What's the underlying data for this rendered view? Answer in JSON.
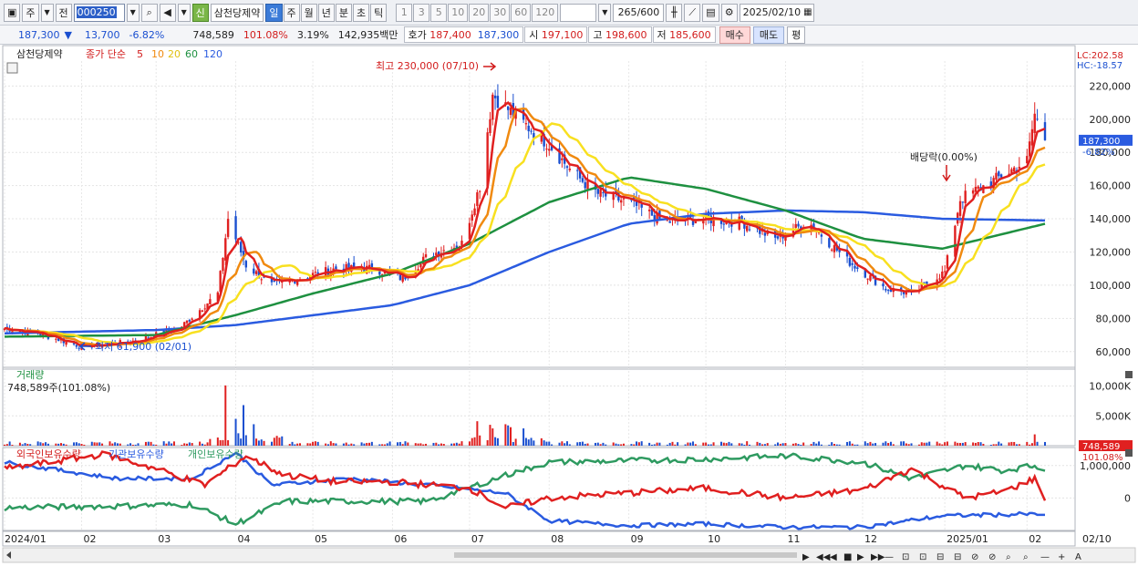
{
  "toolbar": {
    "market": "주",
    "prev_label": "전",
    "code": "000250",
    "stock_badge": "신",
    "stock_name": "삼천당제약",
    "periods": [
      "일",
      "주",
      "월",
      "년",
      "분",
      "초",
      "틱"
    ],
    "active_period": "일",
    "intervals": [
      "1",
      "3",
      "5",
      "10",
      "20",
      "30",
      "60",
      "120"
    ],
    "count_current": "265",
    "count_total": "/600",
    "date": "2025/02/10"
  },
  "quote": {
    "price": "187,300",
    "change": "13,700",
    "change_pct": "-6.82%",
    "volume": "748,589",
    "volume_ratio": "101.08%",
    "turnover": "3.19%",
    "amount": "142,935백만",
    "ask_label": "호가",
    "ask_value": "187,400",
    "bid_value": "187,300",
    "open_label": "시",
    "open_value": "197,100",
    "high_label": "고",
    "high_value": "198,600",
    "low_label": "저",
    "low_value": "185,600",
    "buy_label": "매수",
    "sell_label": "매도",
    "avg_label": "평"
  },
  "colors": {
    "up": "#e02020",
    "down": "#1a4fd0",
    "ma5": "#e02020",
    "ma10": "#f08a10",
    "ma20": "#f8e020",
    "ma60": "#1e9040",
    "ma120": "#2a5be0",
    "foreign": "#e02020",
    "institution": "#2a5be0",
    "individual": "#2e9a60"
  },
  "chart_data": [
    {
      "type": "candlestick",
      "title": "삼천당제약",
      "legend_prefix": "종가 단순",
      "ma_periods": [
        "5",
        "10",
        "20",
        "60",
        "120"
      ],
      "y_ticks": [
        "220,000",
        "200,000",
        "180,000",
        "160,000",
        "140,000",
        "120,000",
        "100,000",
        "80,000",
        "60,000"
      ],
      "ylim": [
        50000,
        235000
      ],
      "lc_label": "LC:202.58",
      "hc_label": "HC:-18.57",
      "current_price_label": "187,300",
      "current_pct_label": "-6.82%",
      "annotations": {
        "high": "최고 230,000 (07/10)",
        "low": "최저 61,900 (02/01)",
        "dividend": "배당락(0.00%)"
      },
      "x_ticks": [
        "2024/01",
        "02",
        "03",
        "04",
        "05",
        "06",
        "07",
        "08",
        "09",
        "10",
        "11",
        "12",
        "2025/01",
        "02",
        "02/10"
      ],
      "close_anchors": [
        [
          "2024-01-02",
          74000
        ],
        [
          "2024-01-15",
          71000
        ],
        [
          "2024-02-01",
          63000
        ],
        [
          "2024-02-20",
          66000
        ],
        [
          "2024-03-10",
          74000
        ],
        [
          "2024-03-25",
          95000
        ],
        [
          "2024-03-29",
          140000
        ],
        [
          "2024-04-05",
          112000
        ],
        [
          "2024-04-15",
          100000
        ],
        [
          "2024-04-25",
          104000
        ],
        [
          "2024-05-10",
          110000
        ],
        [
          "2024-05-25",
          110000
        ],
        [
          "2024-06-05",
          104000
        ],
        [
          "2024-06-15",
          118000
        ],
        [
          "2024-06-28",
          125000
        ],
        [
          "2024-07-05",
          160000
        ],
        [
          "2024-07-10",
          215000
        ],
        [
          "2024-07-20",
          200000
        ],
        [
          "2024-08-01",
          185000
        ],
        [
          "2024-08-10",
          168000
        ],
        [
          "2024-08-20",
          155000
        ],
        [
          "2024-09-01",
          150000
        ],
        [
          "2024-09-15",
          138000
        ],
        [
          "2024-10-01",
          140000
        ],
        [
          "2024-10-15",
          138000
        ],
        [
          "2024-10-28",
          128000
        ],
        [
          "2024-11-10",
          138000
        ],
        [
          "2024-11-25",
          115000
        ],
        [
          "2024-12-10",
          98000
        ],
        [
          "2024-12-20",
          95000
        ],
        [
          "2025-01-02",
          108000
        ],
        [
          "2025-01-08",
          152000
        ],
        [
          "2025-01-20",
          162000
        ],
        [
          "2025-02-03",
          175000
        ],
        [
          "2025-02-06",
          203000
        ],
        [
          "2025-02-10",
          187300
        ]
      ],
      "ma120_anchors": [
        [
          "2024-01-02",
          71000
        ],
        [
          "2024-03-01",
          73000
        ],
        [
          "2024-04-01",
          76000
        ],
        [
          "2024-06-01",
          88000
        ],
        [
          "2024-07-01",
          100000
        ],
        [
          "2024-08-01",
          120000
        ],
        [
          "2024-09-01",
          137000
        ],
        [
          "2024-10-01",
          143000
        ],
        [
          "2024-11-01",
          145000
        ],
        [
          "2024-12-01",
          144000
        ],
        [
          "2025-01-01",
          140000
        ],
        [
          "2025-02-10",
          139000
        ]
      ],
      "ma60_anchors": [
        [
          "2024-01-02",
          69000
        ],
        [
          "2024-03-01",
          70000
        ],
        [
          "2024-04-01",
          82000
        ],
        [
          "2024-05-01",
          95000
        ],
        [
          "2024-06-01",
          107000
        ],
        [
          "2024-07-01",
          125000
        ],
        [
          "2024-08-01",
          150000
        ],
        [
          "2024-09-01",
          165000
        ],
        [
          "2024-10-01",
          158000
        ],
        [
          "2024-11-01",
          145000
        ],
        [
          "2024-12-01",
          128000
        ],
        [
          "2025-01-01",
          122000
        ],
        [
          "2025-02-10",
          137000
        ]
      ]
    },
    {
      "type": "bar",
      "title": "거래량",
      "value_label": "748,589주(101.08%)",
      "y_ticks": [
        "10,000K",
        "5,000K"
      ],
      "ylim": [
        0,
        11000
      ],
      "unit": "K",
      "current_label": "748,589",
      "current_pct": "101.08%",
      "spikes": [
        [
          "2024-03-28",
          10100
        ],
        [
          "2024-04-01",
          4500
        ],
        [
          "2024-04-04",
          6800
        ],
        [
          "2024-04-08",
          3600
        ],
        [
          "2024-07-04",
          4100
        ],
        [
          "2024-07-09",
          3500
        ],
        [
          "2024-07-10",
          2900
        ],
        [
          "2024-07-15",
          3600
        ],
        [
          "2024-07-16",
          3400
        ],
        [
          "2024-07-17",
          3100
        ],
        [
          "2024-07-22",
          2900
        ],
        [
          "2025-02-06",
          1900
        ]
      ]
    },
    {
      "type": "line",
      "series_names": [
        "외국인보유수량",
        "기관보유수량",
        "개인보유수량"
      ],
      "y_ticks": [
        "1,000,000",
        "0"
      ],
      "ylim": [
        -1000000,
        1500000
      ],
      "foreign_anchors": [
        [
          "2024-01-02",
          900000
        ],
        [
          "2024-02-10",
          1350000
        ],
        [
          "2024-03-01",
          900000
        ],
        [
          "2024-03-20",
          400000
        ],
        [
          "2024-04-05",
          1300000
        ],
        [
          "2024-04-20",
          700000
        ],
        [
          "2024-05-10",
          500000
        ],
        [
          "2024-06-01",
          500000
        ],
        [
          "2024-07-01",
          300000
        ],
        [
          "2024-07-15",
          -300000
        ],
        [
          "2024-08-01",
          0
        ],
        [
          "2024-10-01",
          300000
        ],
        [
          "2024-11-01",
          0
        ],
        [
          "2024-12-01",
          250000
        ],
        [
          "2024-12-20",
          900000
        ],
        [
          "2025-01-10",
          0
        ],
        [
          "2025-01-25",
          200000
        ],
        [
          "2025-02-06",
          600000
        ],
        [
          "2025-02-10",
          0
        ]
      ],
      "institution_anchors": [
        [
          "2024-01-02",
          1100000
        ],
        [
          "2024-02-15",
          600000
        ],
        [
          "2024-03-15",
          600000
        ],
        [
          "2024-04-01",
          1400000
        ],
        [
          "2024-04-15",
          400000
        ],
        [
          "2024-05-15",
          600000
        ],
        [
          "2024-06-15",
          400000
        ],
        [
          "2024-07-15",
          150000
        ],
        [
          "2024-08-01",
          -700000
        ],
        [
          "2024-09-01",
          -850000
        ],
        [
          "2024-10-01",
          -800000
        ],
        [
          "2024-11-01",
          -900000
        ],
        [
          "2024-12-01",
          -900000
        ],
        [
          "2025-01-01",
          -550000
        ],
        [
          "2025-02-01",
          -500000
        ],
        [
          "2025-02-10",
          -500000
        ]
      ],
      "individual_anchors": [
        [
          "2024-01-02",
          -300000
        ],
        [
          "2024-02-15",
          -250000
        ],
        [
          "2024-03-15",
          -200000
        ],
        [
          "2024-04-01",
          -800000
        ],
        [
          "2024-04-20",
          -100000
        ],
        [
          "2024-05-15",
          -100000
        ],
        [
          "2024-06-15",
          -100000
        ],
        [
          "2024-07-15",
          700000
        ],
        [
          "2024-08-01",
          1100000
        ],
        [
          "2024-09-01",
          1150000
        ],
        [
          "2024-10-01",
          1200000
        ],
        [
          "2024-11-01",
          1300000
        ],
        [
          "2024-12-01",
          1100000
        ],
        [
          "2024-12-20",
          600000
        ],
        [
          "2025-01-10",
          1000000
        ],
        [
          "2025-01-25",
          850000
        ],
        [
          "2025-02-06",
          1000000
        ],
        [
          "2025-02-10",
          900000
        ]
      ]
    }
  ]
}
